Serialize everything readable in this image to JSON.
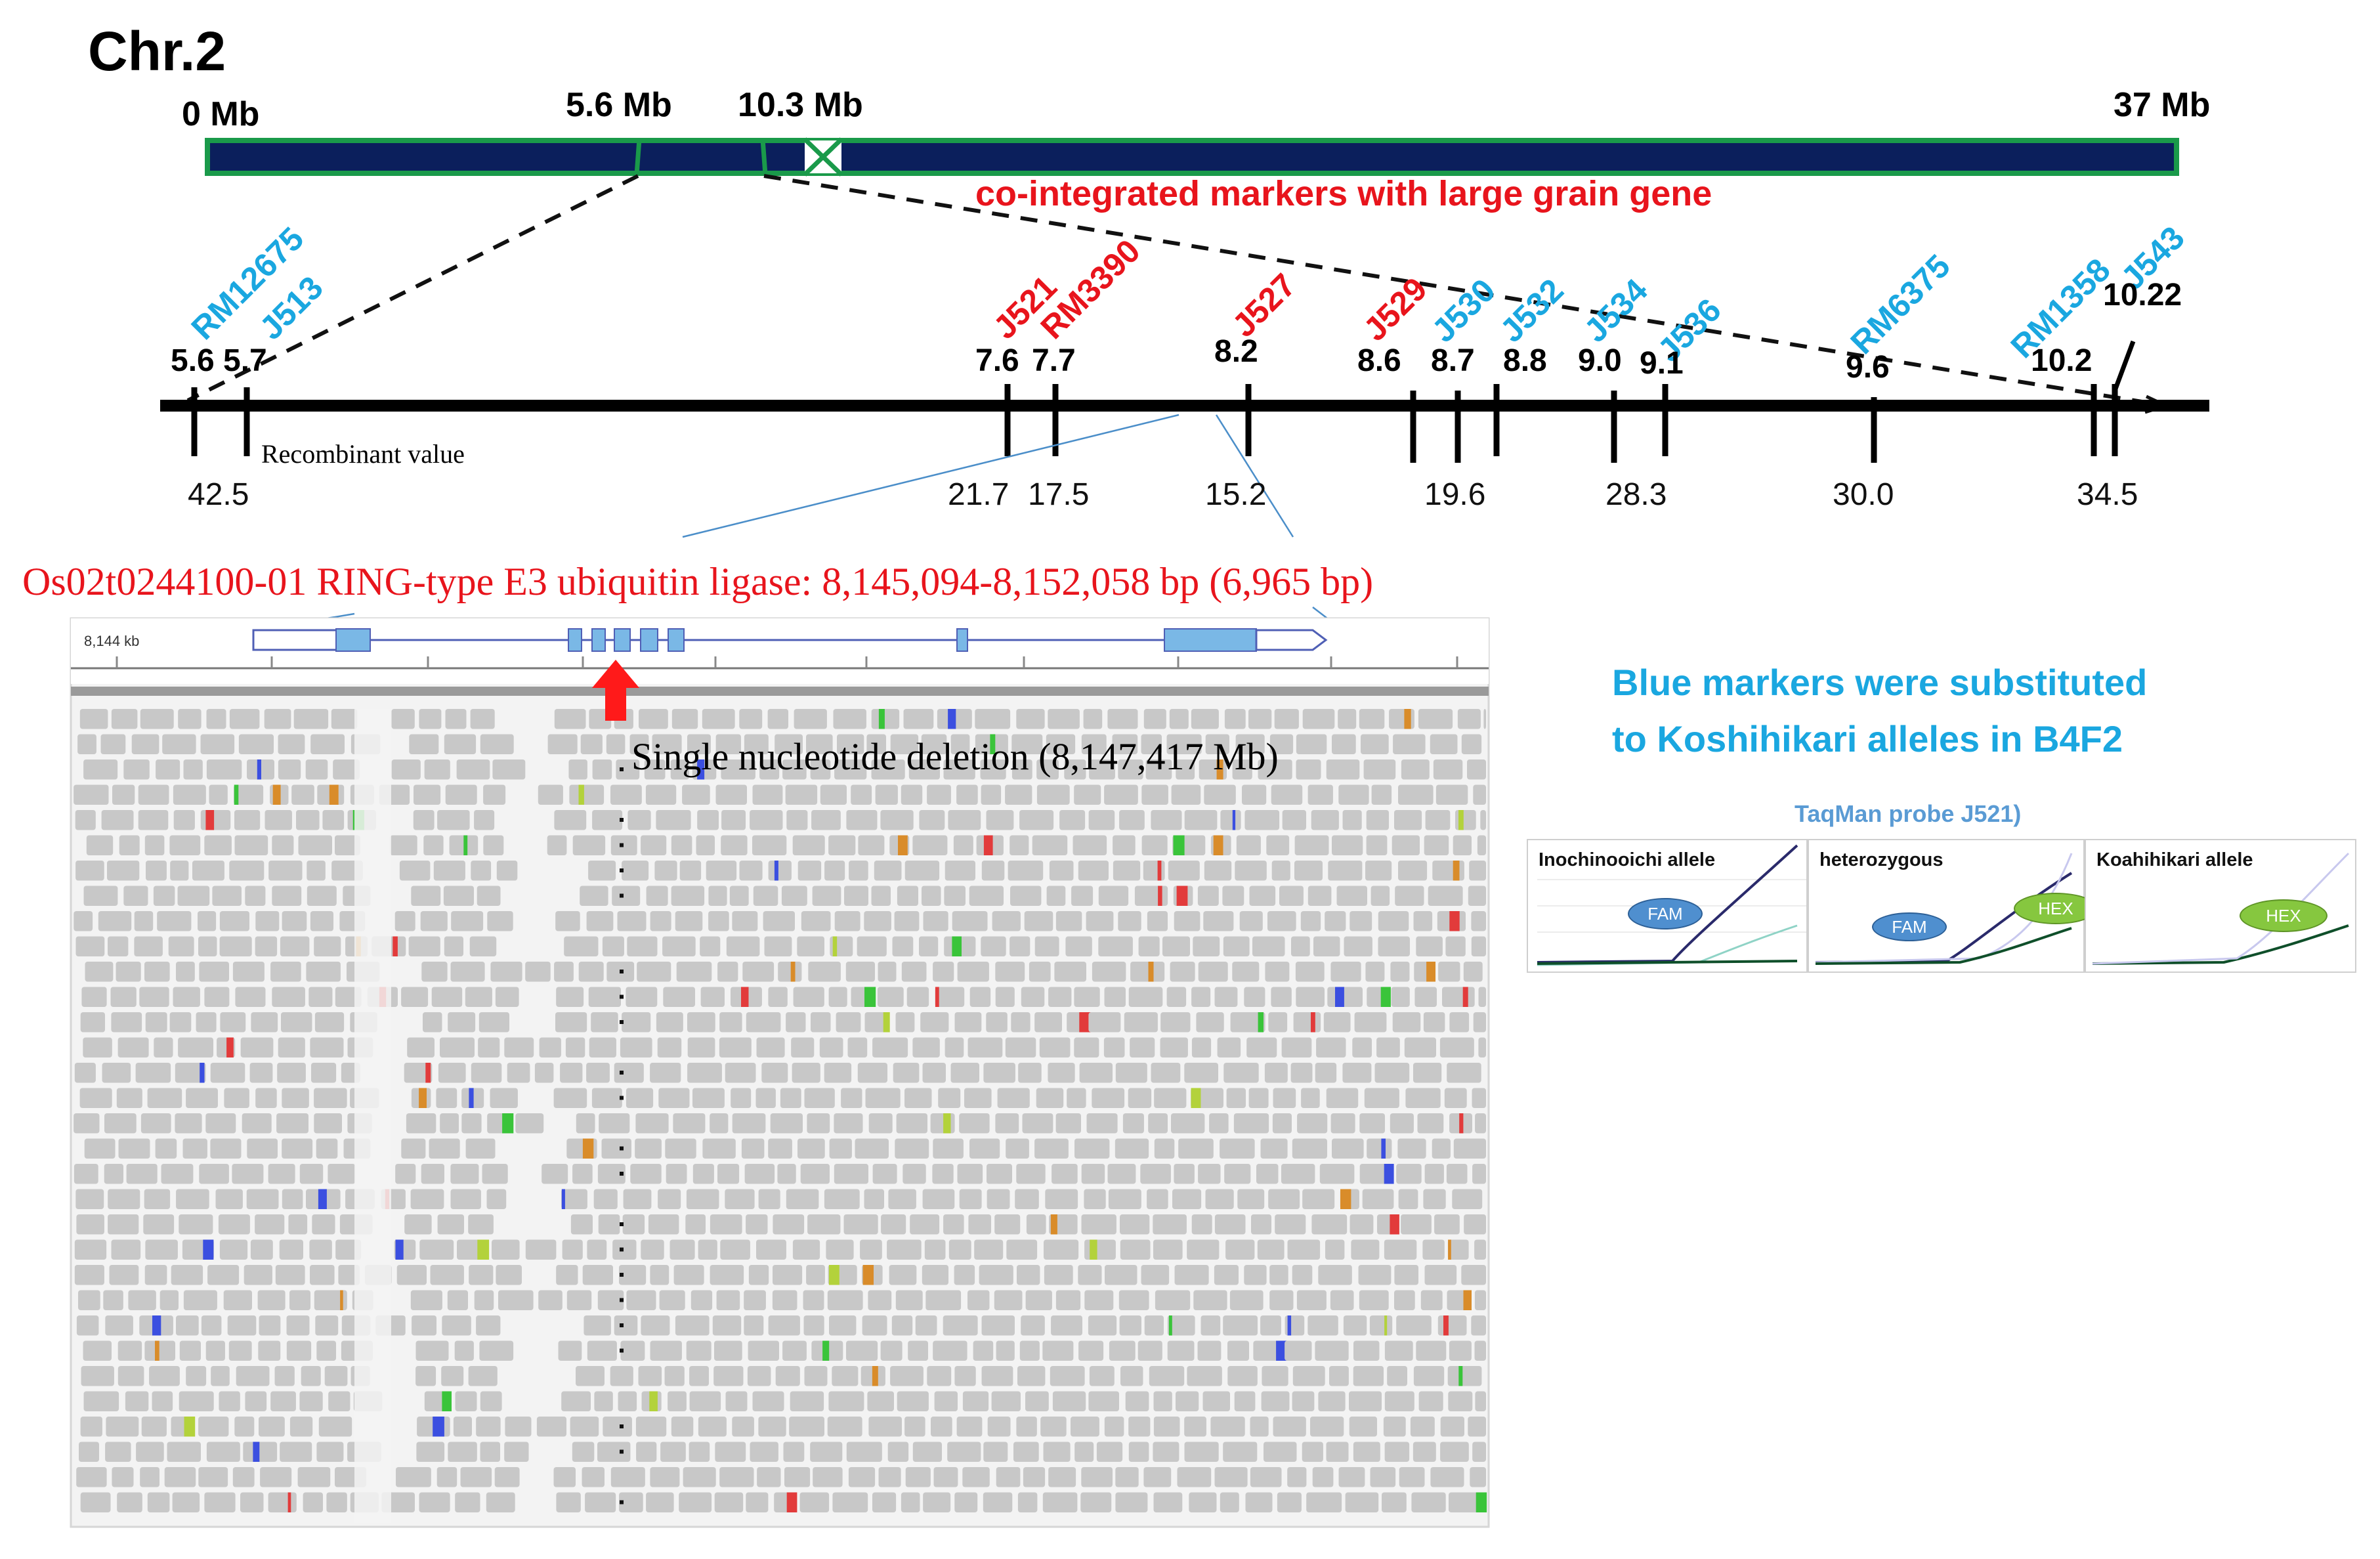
{
  "title": "Chr.2",
  "chromosome": {
    "labels": [
      "0 Mb",
      "5.6 Mb",
      "10.3 Mb",
      "37  Mb"
    ],
    "note": "co-integrated markers with large grain gene",
    "colors": {
      "fill": "#0b1f5c",
      "border": "#1a9a4a"
    }
  },
  "markers": [
    {
      "name": "RM12675",
      "pos": "5.6",
      "color": "blue"
    },
    {
      "name": "J513",
      "pos": "5.7",
      "color": "blue"
    },
    {
      "name": "J521",
      "pos": "7.6",
      "color": "red"
    },
    {
      "name": "RM3390",
      "pos": "7.7",
      "color": "red"
    },
    {
      "name": "J527",
      "pos": "8.2",
      "color": "red"
    },
    {
      "name": "J529",
      "pos": "8.6",
      "color": "red"
    },
    {
      "name": "J530",
      "pos": "8.7",
      "color": "blue"
    },
    {
      "name": "J532",
      "pos": "8.8",
      "color": "blue"
    },
    {
      "name": "J534",
      "pos": "9.0",
      "color": "blue"
    },
    {
      "name": "J536",
      "pos": "9.1",
      "color": "blue"
    },
    {
      "name": "RM6375",
      "pos": "9.6",
      "color": "blue"
    },
    {
      "name": "RM1358",
      "pos": "10.2",
      "color": "blue"
    },
    {
      "name": "J543",
      "pos": "10.22",
      "color": "blue"
    }
  ],
  "recombinant_label": "Recombinant value",
  "recombinant_values": [
    "42.5",
    "21.7",
    "17.5",
    "15.2",
    "19.6",
    "28.3",
    "30.0",
    "34.5"
  ],
  "gene": {
    "label": "Os02t0244100-01 RING-type E3 ubiquitin ligase: 8,145,094-8,152,058 bp (6,965 bp)",
    "ruler_label": "8,144 kb",
    "deletion_label": "Single  nucleotide deletion (8,147,417 Mb)"
  },
  "legend_note": [
    "Blue markers were substituted",
    "to Koshihikari alleles in B4F2"
  ],
  "taqman": {
    "title": "TaqMan probe J521)",
    "panels": [
      {
        "name": "Inochinooichi allele",
        "probes": [
          "FAM"
        ]
      },
      {
        "name": "heterozygous",
        "probes": [
          "FAM",
          "HEX"
        ]
      },
      {
        "name": "Koahihikari allele",
        "probes": [
          "HEX"
        ]
      }
    ]
  },
  "colors": {
    "blue_text": "#1aa7e0",
    "red_text": "#e8141c",
    "read_gray": "#c8c8c8"
  }
}
